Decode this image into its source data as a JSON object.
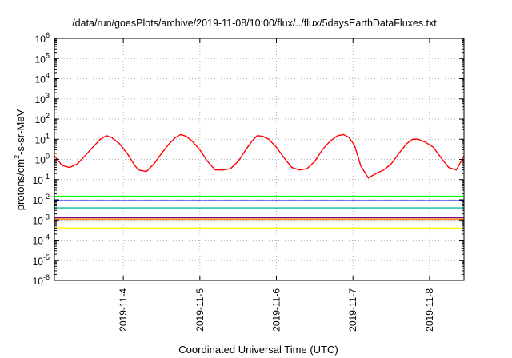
{
  "chart_data": {
    "type": "line",
    "title": "/data/run/goesPlots/archive/2019-11-08/10:00/flux/../flux/5daysEarthDataFluxes.txt",
    "xlabel": "Coordinated Universal Time (UTC)",
    "ylabel_base": "protons/cm",
    "ylabel_sup": "2",
    "ylabel_rest": "-s-sr-MeV",
    "yscale": "log",
    "ylim": [
      1e-06,
      1000000.0
    ],
    "y_tick_exponents": [
      -6,
      -5,
      -4,
      -3,
      -2,
      -1,
      0,
      1,
      2,
      3,
      4,
      5,
      6
    ],
    "y_tick_base": "10",
    "xlim": [
      3.1,
      8.45
    ],
    "x_ticks": [
      {
        "x": 4,
        "label": "2019-11-4"
      },
      {
        "x": 5,
        "label": "2019-11-5"
      },
      {
        "x": 6,
        "label": "2019-11-6"
      },
      {
        "x": 7,
        "label": "2019-11-7"
      },
      {
        "x": 8,
        "label": "2019-11-8"
      }
    ],
    "grid": true,
    "legend": "none",
    "series": [
      {
        "color": "#ffff00",
        "x": [
          3.1,
          3.5,
          4.0,
          4.5,
          5.0,
          5.5,
          6.0,
          6.5,
          7.0,
          7.5,
          8.0,
          8.45
        ],
        "y": [
          0.0004,
          0.0004,
          0.0004,
          0.0004,
          0.0004,
          0.0004,
          0.0004,
          0.0004,
          0.0004,
          0.0004,
          0.0004,
          0.0004
        ]
      },
      {
        "color": "#9a9a9a",
        "x": [
          3.1,
          3.5,
          4.0,
          4.5,
          5.0,
          5.5,
          6.0,
          6.5,
          7.0,
          7.5,
          8.0,
          8.45
        ],
        "y": [
          0.0009,
          0.0009,
          0.0009,
          0.0009,
          0.0009,
          0.0009,
          0.0009,
          0.0009,
          0.0009,
          0.0009,
          0.0009,
          0.0009
        ]
      },
      {
        "color": "#ff8000",
        "x": [
          3.1,
          3.5,
          4.0,
          4.5,
          5.0,
          5.5,
          6.0,
          6.5,
          7.0,
          7.5,
          8.0,
          8.45
        ],
        "y": [
          0.0011,
          0.0011,
          0.0011,
          0.0011,
          0.0011,
          0.0011,
          0.0011,
          0.0011,
          0.0011,
          0.0011,
          0.0011,
          0.0011
        ]
      },
      {
        "color": "#00c0a0",
        "x": [
          3.1,
          3.5,
          4.0,
          4.5,
          5.0,
          5.5,
          6.0,
          6.5,
          7.0,
          7.5,
          8.0,
          8.45
        ],
        "y": [
          0.004,
          0.004,
          0.004,
          0.004,
          0.004,
          0.004,
          0.004,
          0.004,
          0.004,
          0.004,
          0.004,
          0.004
        ]
      },
      {
        "color": "#00ff00",
        "x": [
          3.1,
          3.5,
          4.0,
          4.5,
          5.0,
          5.5,
          6.0,
          6.5,
          7.0,
          7.5,
          8.0,
          8.45
        ],
        "y": [
          0.015,
          0.015,
          0.015,
          0.015,
          0.015,
          0.015,
          0.015,
          0.015,
          0.015,
          0.015,
          0.015,
          0.015
        ]
      },
      {
        "color": "#0000ff",
        "x": [
          3.1,
          3.5,
          4.0,
          4.5,
          5.0,
          5.5,
          6.0,
          6.5,
          7.0,
          7.5,
          8.0,
          8.45
        ],
        "y": [
          0.009,
          0.009,
          0.009,
          0.009,
          0.009,
          0.009,
          0.009,
          0.009,
          0.009,
          0.009,
          0.009,
          0.009
        ]
      },
      {
        "color": "#800080",
        "x": [
          3.1,
          3.5,
          4.0,
          4.5,
          5.0,
          5.5,
          6.0,
          6.5,
          7.0,
          7.5,
          8.0,
          8.45
        ],
        "y": [
          0.0013,
          0.0013,
          0.0013,
          0.0013,
          0.0013,
          0.0013,
          0.0013,
          0.0013,
          0.0013,
          0.0013,
          0.0013,
          0.0013
        ]
      },
      {
        "color": "#ff0000",
        "x": [
          3.1,
          3.2,
          3.3,
          3.4,
          3.5,
          3.6,
          3.7,
          3.78,
          3.85,
          3.95,
          4.05,
          4.15,
          4.2,
          4.3,
          4.4,
          4.5,
          4.6,
          4.68,
          4.75,
          4.82,
          4.9,
          5.0,
          5.1,
          5.2,
          5.3,
          5.4,
          5.5,
          5.6,
          5.68,
          5.75,
          5.82,
          5.9,
          6.0,
          6.1,
          6.2,
          6.3,
          6.4,
          6.5,
          6.6,
          6.7,
          6.8,
          6.88,
          6.95,
          7.02,
          7.1,
          7.2,
          7.3,
          7.4,
          7.5,
          7.6,
          7.7,
          7.78,
          7.85,
          7.95,
          8.05,
          8.15,
          8.25,
          8.35,
          8.45
        ],
        "y": [
          1.5,
          0.5,
          0.4,
          0.6,
          1.5,
          4.0,
          10.0,
          15.0,
          12.0,
          6.0,
          2.0,
          0.5,
          0.3,
          0.25,
          0.6,
          2.0,
          6.0,
          12.0,
          17.0,
          14.0,
          8.0,
          3.0,
          0.8,
          0.3,
          0.3,
          0.35,
          0.8,
          3.0,
          8.0,
          15.0,
          14.0,
          10.0,
          4.0,
          1.2,
          0.4,
          0.3,
          0.35,
          0.8,
          3.0,
          8.0,
          15.0,
          17.0,
          12.0,
          5.0,
          0.5,
          0.12,
          0.2,
          0.3,
          0.6,
          2.0,
          6.0,
          10.0,
          10.0,
          7.0,
          4.0,
          1.2,
          0.4,
          0.3,
          1.5
        ]
      }
    ]
  }
}
